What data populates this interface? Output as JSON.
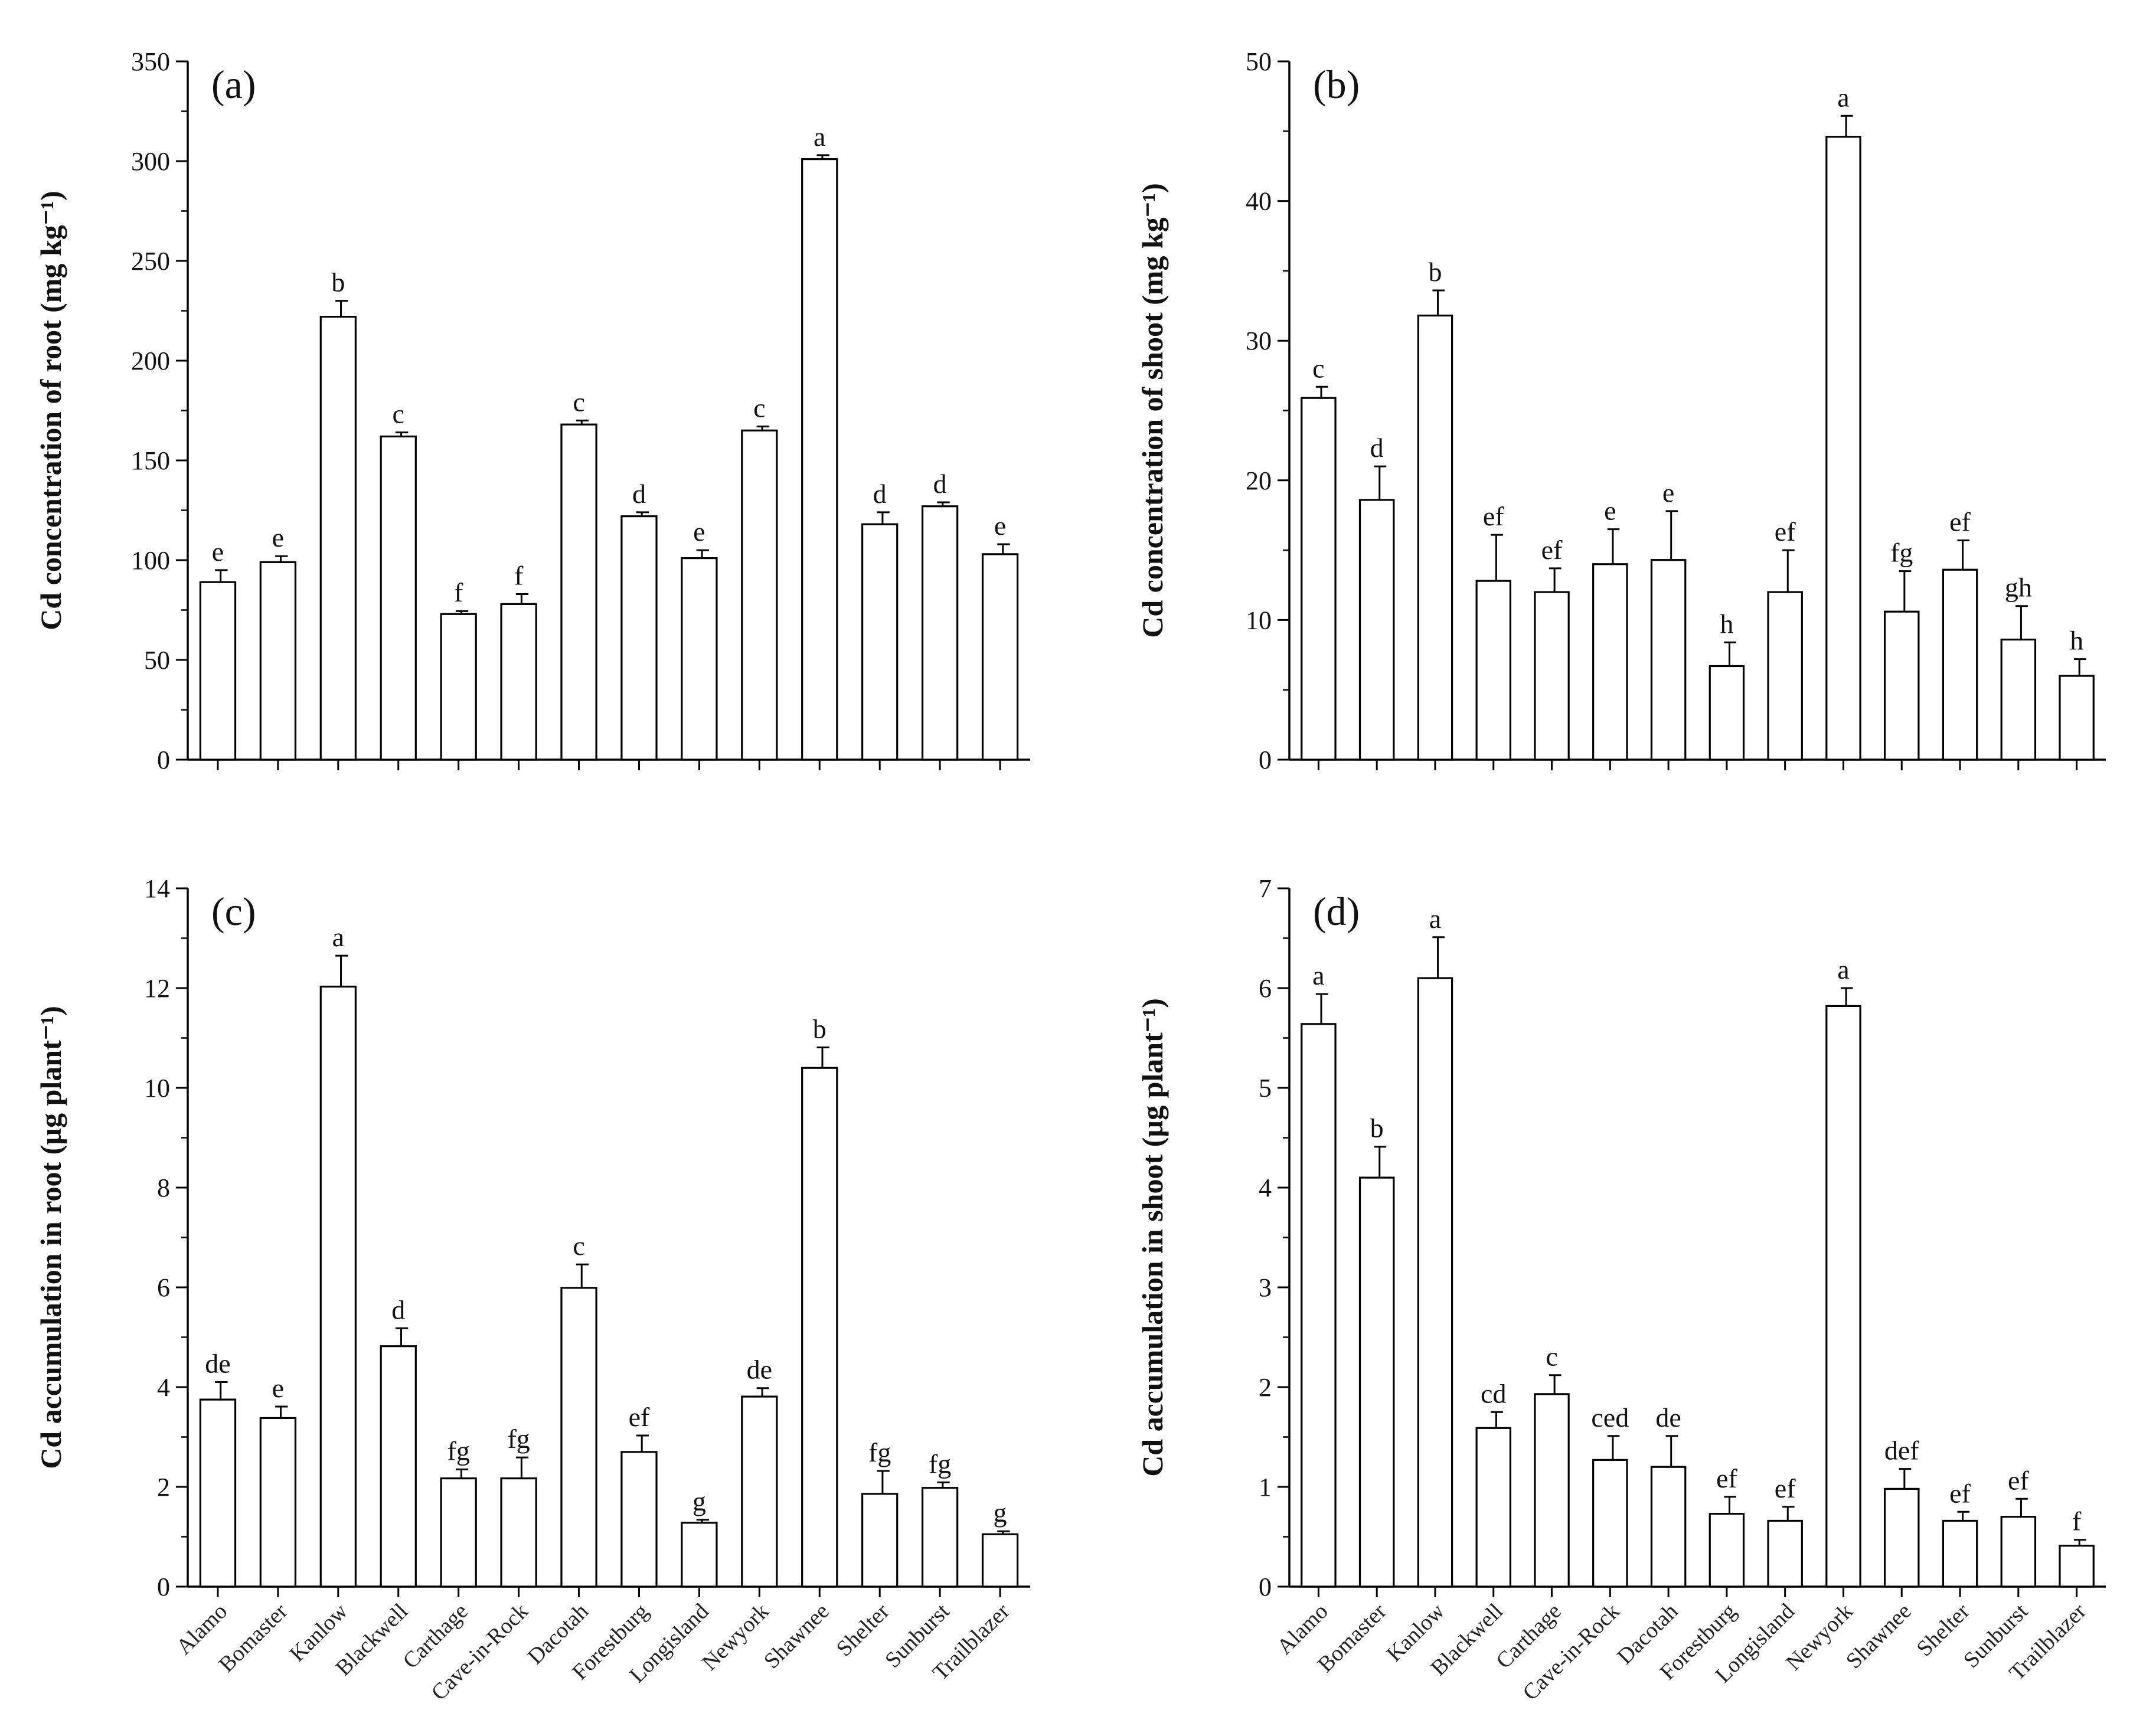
{
  "figure": {
    "categories": [
      "Alamo",
      "Bomaster",
      "Kanlow",
      "Blackwell",
      "Carthage",
      "Cave-in-Rock",
      "Dacotah",
      "Forestburg",
      "Longisland",
      "Newyork",
      "Shawnee",
      "Shelter",
      "Sunburst",
      "Trailblazer"
    ]
  },
  "chart_data": [
    {
      "type": "bar",
      "panel": "(a)",
      "ylabel": "Cd concentration of root (mg kg⁻¹)",
      "ylim": [
        0,
        350
      ],
      "yticks": [
        0,
        50,
        100,
        150,
        200,
        250,
        300,
        350
      ],
      "categories": [
        "Alamo",
        "Bomaster",
        "Kanlow",
        "Blackwell",
        "Carthage",
        "Cave-in-Rock",
        "Dacotah",
        "Forestburg",
        "Longisland",
        "Newyork",
        "Shawnee",
        "Shelter",
        "Sunburst",
        "Trailblazer"
      ],
      "values": [
        89,
        99,
        222,
        162,
        73,
        78,
        168,
        122,
        101,
        165,
        301,
        118,
        127,
        103
      ],
      "errors": [
        6,
        3,
        8,
        2,
        1.5,
        5,
        2,
        2,
        4,
        2,
        2,
        6,
        2,
        5
      ],
      "letters": [
        "e",
        "e",
        "b",
        "c",
        "f",
        "f",
        "c",
        "d",
        "e",
        "c",
        "a",
        "d",
        "d",
        "e"
      ],
      "show_x_labels": false
    },
    {
      "type": "bar",
      "panel": "(b)",
      "ylabel": "Cd concentration of shoot (mg kg⁻¹)",
      "ylim": [
        0,
        50
      ],
      "yticks": [
        0,
        10,
        20,
        30,
        40,
        50
      ],
      "categories": [
        "Alamo",
        "Bomaster",
        "Kanlow",
        "Blackwell",
        "Carthage",
        "Cave-in-Rock",
        "Dacotah",
        "Forestburg",
        "Longisland",
        "Newyork",
        "Shawnee",
        "Shelter",
        "Sunburst",
        "Trailblazer"
      ],
      "values": [
        25.9,
        18.6,
        31.8,
        12.8,
        12.0,
        14.0,
        14.3,
        6.7,
        12.0,
        44.6,
        10.6,
        13.6,
        8.6,
        6.0
      ],
      "errors": [
        0.8,
        2.4,
        1.8,
        3.3,
        1.7,
        2.5,
        3.5,
        1.7,
        3.0,
        1.5,
        2.9,
        2.1,
        2.4,
        1.2
      ],
      "letters": [
        "c",
        "d",
        "b",
        "ef",
        "ef",
        "e",
        "e",
        "h",
        "ef",
        "a",
        "fg",
        "ef",
        "gh",
        "h"
      ],
      "show_x_labels": false
    },
    {
      "type": "bar",
      "panel": "(c)",
      "ylabel": "Cd accumulation in root (µg plant⁻¹)",
      "ylim": [
        0,
        14
      ],
      "yticks": [
        0,
        2,
        4,
        6,
        8,
        10,
        12,
        14
      ],
      "categories": [
        "Alamo",
        "Bomaster",
        "Kanlow",
        "Blackwell",
        "Carthage",
        "Cave-in-Rock",
        "Dacotah",
        "Forestburg",
        "Longisland",
        "Newyork",
        "Shawnee",
        "Shelter",
        "Sunburst",
        "Trailblazer"
      ],
      "values": [
        3.75,
        3.38,
        12.03,
        4.82,
        2.17,
        2.17,
        5.99,
        2.7,
        1.28,
        3.81,
        10.4,
        1.86,
        1.98,
        1.05
      ],
      "errors": [
        0.35,
        0.23,
        0.62,
        0.36,
        0.18,
        0.42,
        0.47,
        0.33,
        0.06,
        0.17,
        0.41,
        0.46,
        0.11,
        0.06
      ],
      "letters": [
        "de",
        "e",
        "a",
        "d",
        "fg",
        "fg",
        "c",
        "ef",
        "g",
        "de",
        "b",
        "fg",
        "fg",
        "g"
      ],
      "show_x_labels": true
    },
    {
      "type": "bar",
      "panel": "(d)",
      "ylabel": "Cd accumulation in shoot (µg plant⁻¹)",
      "ylim": [
        0,
        7
      ],
      "yticks": [
        0,
        1,
        2,
        3,
        4,
        5,
        6,
        7
      ],
      "categories": [
        "Alamo",
        "Bomaster",
        "Kanlow",
        "Blackwell",
        "Carthage",
        "Cave-in-Rock",
        "Dacotah",
        "Forestburg",
        "Longisland",
        "Newyork",
        "Shawnee",
        "Shelter",
        "Sunburst",
        "Trailblazer"
      ],
      "values": [
        5.64,
        4.1,
        6.1,
        1.59,
        1.93,
        1.27,
        1.2,
        0.73,
        0.66,
        5.82,
        0.98,
        0.66,
        0.7,
        0.41
      ],
      "errors": [
        0.3,
        0.31,
        0.41,
        0.16,
        0.19,
        0.24,
        0.31,
        0.17,
        0.14,
        0.18,
        0.2,
        0.09,
        0.18,
        0.06
      ],
      "letters": [
        "a",
        "b",
        "a",
        "cd",
        "c",
        "ced",
        "de",
        "ef",
        "ef",
        "a",
        "def",
        "ef",
        "ef",
        "f"
      ],
      "show_x_labels": true
    }
  ]
}
